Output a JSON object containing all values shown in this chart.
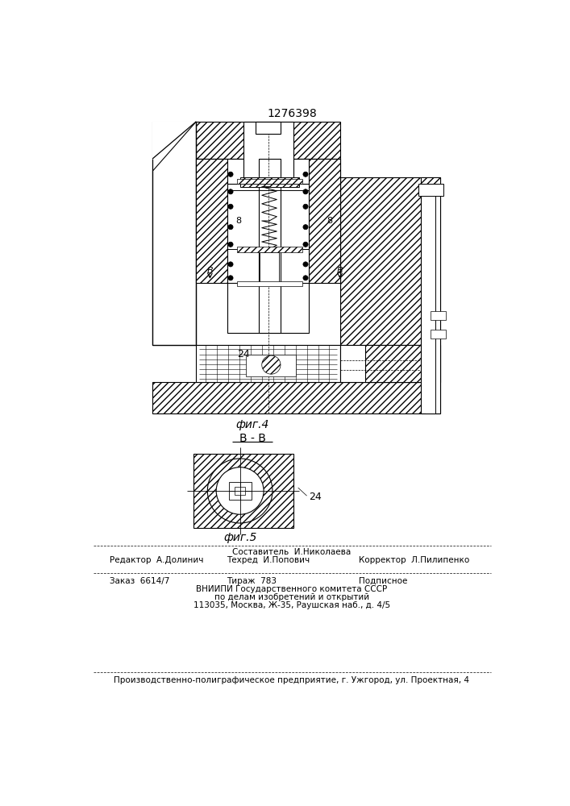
{
  "patent_number": "1276398",
  "fig4_label": "фиг.4",
  "fig5_label": "фиг.5",
  "section_label": "В - В",
  "label_24": "24",
  "label_8_left": "8",
  "label_8_right": "8",
  "label_B_left": "В",
  "label_B_right": "В",
  "footer_sestavitel": "Составитель  И.Николаева",
  "footer_editor": "Редактор  А.Долинич",
  "footer_tekhred": "Техред  И.Попович",
  "footer_korrektor": "Корректор  Л.Пилипенко",
  "footer_zakaz": "Заказ  6614/7",
  "footer_tirazh": "Тираж  783",
  "footer_podpisnoe": "Подписное",
  "footer_vniip1": "ВНИИПИ Государственного комитета СССР",
  "footer_vniip2": "по делам изобретений и открытий",
  "footer_vniip3": "113035, Москва, Ж-35, Раушская наб., д. 4/5",
  "footer_predpr": "Производственно-полиграфическое предприятие, г. Ужгород, ул. Проектная, 4",
  "lc": "#000000",
  "bg": "#ffffff"
}
